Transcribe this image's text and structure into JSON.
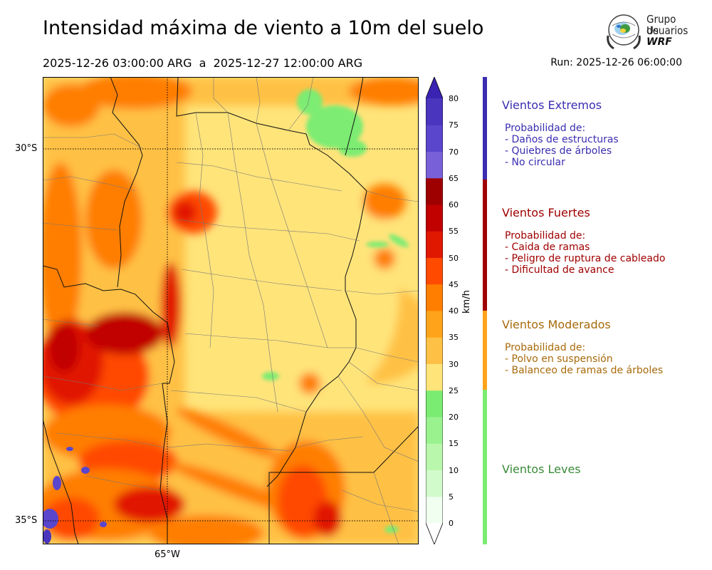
{
  "header": {
    "title": "Intensidad máxima de viento a 10m del suelo",
    "period": "2025-12-26 03:00:00 ARG  a  2025-12-27 12:00:00 ARG",
    "run": "Run: 2025-12-26 06:00:00"
  },
  "logo": {
    "line1": "Grupo de",
    "line2": "Usuarios",
    "line3": "WRF"
  },
  "map": {
    "lat_labels": [
      "30°S",
      "35°S"
    ],
    "lon_labels": [
      "65°W"
    ]
  },
  "colorbar": {
    "unit": "km/h",
    "ticks": [
      "80",
      "75",
      "70",
      "65",
      "60",
      "55",
      "50",
      "45",
      "40",
      "35",
      "30",
      "25",
      "20",
      "15",
      "10",
      "5",
      "0"
    ],
    "colors": [
      "#f0fff0",
      "#d2fbcb",
      "#b9f7ad",
      "#9af28f",
      "#7bec72",
      "#ffe47a",
      "#ffc145",
      "#ffa41a",
      "#ff7e00",
      "#ff4a00",
      "#e11800",
      "#c10000",
      "#9e0000",
      "#7861d8",
      "#5a46cc",
      "#4a36be",
      "#3a22b2"
    ]
  },
  "categories": [
    {
      "title": "Vientos Extremos",
      "color": "#3a2db0",
      "lines": [
        "Probabilidad de:",
        "- Daños de estructuras",
        "- Quiebres de árboles",
        "- No circular"
      ]
    },
    {
      "title": "Vientos Fuertes",
      "color": "#a00000",
      "lines": [
        "Probabilidad de:",
        "- Caida de ramas",
        "- Peligro de ruptura de cableado",
        "- Dificultad de avance"
      ]
    },
    {
      "title": "Vientos Moderados",
      "color": "#a86a0a",
      "lines": [
        "Probabilidad de:",
        "- Polvo en suspensión",
        "- Balanceo de ramas de árboles"
      ]
    },
    {
      "title": "Vientos Leves",
      "color": "#3a8a3a",
      "lines": []
    }
  ]
}
